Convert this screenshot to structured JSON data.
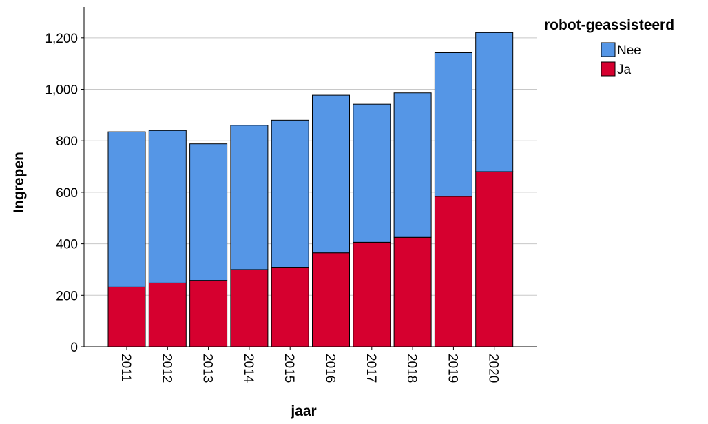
{
  "chart_data": {
    "type": "bar",
    "stacked": true,
    "categories": [
      "2011",
      "2012",
      "2013",
      "2014",
      "2015",
      "2016",
      "2017",
      "2018",
      "2019",
      "2020"
    ],
    "series": [
      {
        "name": "Ja",
        "color": "#d6002f",
        "values": [
          232,
          248,
          258,
          300,
          307,
          365,
          406,
          425,
          584,
          680
        ]
      },
      {
        "name": "Nee",
        "color": "#5596e6",
        "values": [
          603,
          592,
          530,
          560,
          573,
          612,
          536,
          561,
          558,
          540
        ]
      }
    ],
    "totals": [
      835,
      840,
      788,
      860,
      880,
      977,
      942,
      986,
      1142,
      1220
    ],
    "title": "",
    "xlabel": "jaar",
    "ylabel": "Ingrepen",
    "ylim": [
      0,
      1320
    ],
    "yticks": [
      0,
      200,
      400,
      600,
      800,
      1000,
      1200
    ],
    "ytick_labels": [
      "0",
      "200",
      "400",
      "600",
      "800",
      "1,000",
      "1,200"
    ],
    "grid": true,
    "legend": {
      "title": "robot-geassisteerd",
      "position": "top-right",
      "entries": [
        {
          "label": "Nee",
          "color": "#5596e6"
        },
        {
          "label": "Ja",
          "color": "#d6002f"
        }
      ]
    }
  }
}
